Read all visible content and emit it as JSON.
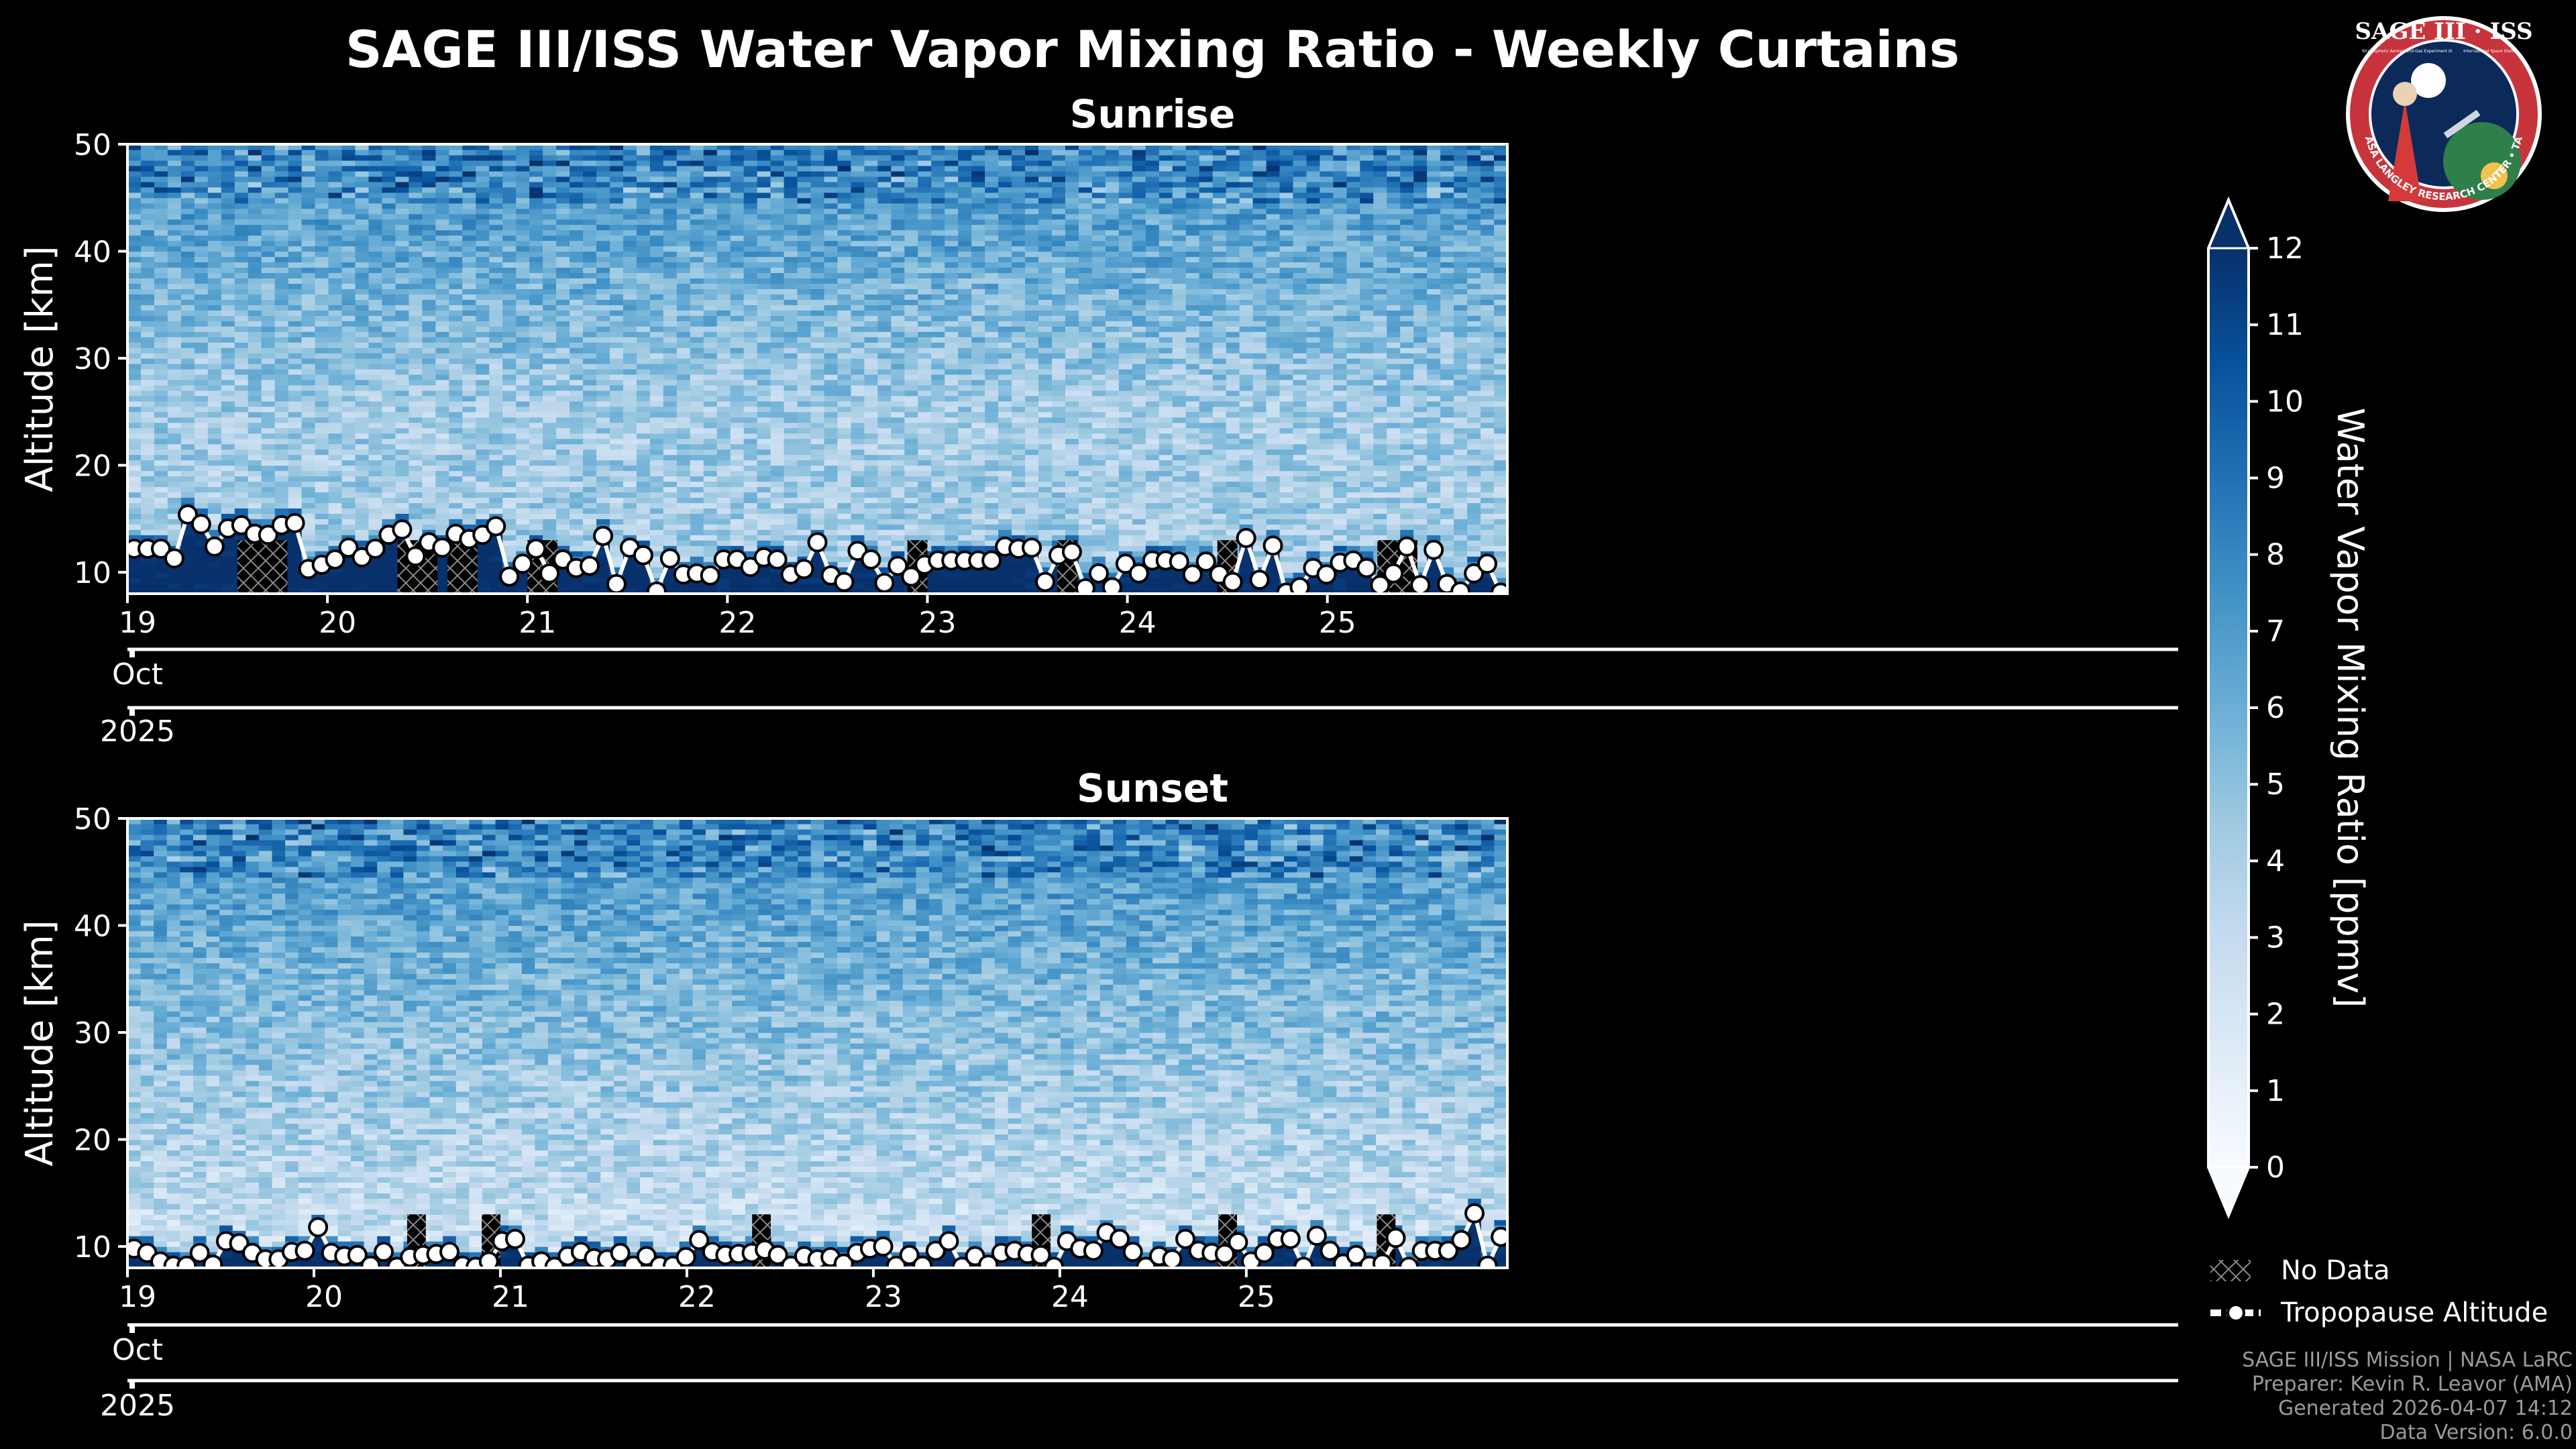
{
  "title": "SAGE III/ISS Water Vapor Mixing Ratio - Weekly Curtains",
  "logo": {
    "name": "SAGE III · ISS",
    "subtitle_left": "Stratospheric Aerosol and Gas Experiment III",
    "subtitle_right": "International Space Station",
    "ring_text": "BALL • NASA LANGLEY RESEARCH CENTER • TAS-I • ESA"
  },
  "chart_data": [
    {
      "type": "heatmap",
      "title": "Sunrise",
      "ylabel": "Altitude [km]",
      "xlabel": "",
      "ylim": [
        8,
        50
      ],
      "yticks": [
        10,
        20,
        30,
        40,
        50
      ],
      "xlim": [
        19,
        25.9
      ],
      "xticks": [
        {
          "value": 19,
          "label": "19"
        },
        {
          "value": 20,
          "label": "20"
        },
        {
          "value": 21,
          "label": "21"
        },
        {
          "value": 22,
          "label": "22"
        },
        {
          "value": 23,
          "label": "23"
        },
        {
          "value": 24,
          "label": "24"
        },
        {
          "value": 25,
          "label": "25"
        }
      ],
      "month_label": "Oct",
      "year_label": "2025",
      "colormap": "Blues",
      "grid": false,
      "tropopause_altitude_km": [
        12.2,
        12.2,
        12.2,
        11.3,
        15.4,
        14.5,
        12.4,
        14.1,
        14.4,
        13.6,
        13.5,
        14.4,
        14.6,
        10.3,
        10.7,
        11.2,
        12.3,
        11.4,
        12.2,
        13.5,
        14.0,
        11.5,
        12.8,
        12.3,
        13.6,
        13.1,
        13.5,
        14.3,
        9.6,
        10.8,
        12.2,
        9.9,
        11.2,
        10.4,
        10.6,
        13.4,
        8.9,
        12.3,
        11.6,
        8.2,
        11.3,
        9.8,
        9.9,
        9.7,
        11.2,
        11.2,
        10.5,
        11.4,
        11.2,
        9.8,
        10.3,
        12.8,
        9.7,
        9.1,
        12.0,
        11.2,
        9.0,
        10.6,
        9.6,
        10.7,
        11.1,
        11.1,
        11.1,
        11.1,
        11.1,
        12.4,
        12.2,
        12.3,
        9.1,
        11.6,
        11.9,
        8.5,
        9.9,
        8.6,
        10.8,
        9.9,
        11.1,
        11.1,
        11.0,
        9.8,
        11.0,
        9.8,
        9.1,
        13.2,
        9.3,
        12.5,
        8.1,
        8.6,
        10.4,
        9.8,
        10.9,
        11.1,
        10.4,
        8.8,
        9.9,
        12.4,
        8.8,
        12.1,
        8.9,
        8.2,
        9.9,
        10.8,
        8.1
      ],
      "missing_ranges": [
        [
          19.55,
          19.8
        ],
        [
          20.35,
          20.55
        ],
        [
          20.6,
          20.75
        ],
        [
          21.0,
          21.15
        ],
        [
          22.9,
          23.0
        ],
        [
          23.65,
          23.75
        ],
        [
          24.45,
          24.55
        ],
        [
          25.25,
          25.45
        ]
      ]
    },
    {
      "type": "heatmap",
      "title": "Sunset",
      "ylabel": "Altitude [km]",
      "xlabel": "",
      "ylim": [
        8,
        50
      ],
      "yticks": [
        10,
        20,
        30,
        40,
        50
      ],
      "xlim": [
        19,
        26.4
      ],
      "xticks": [
        {
          "value": 19,
          "label": "19"
        },
        {
          "value": 20,
          "label": "20"
        },
        {
          "value": 21,
          "label": "21"
        },
        {
          "value": 22,
          "label": "22"
        },
        {
          "value": 23,
          "label": "23"
        },
        {
          "value": 24,
          "label": "24"
        },
        {
          "value": 25,
          "label": "25"
        }
      ],
      "month_label": "Oct",
      "year_label": "2025",
      "colormap": "Blues",
      "grid": false,
      "tropopause_altitude_km": [
        9.8,
        9.4,
        8.6,
        8.2,
        8.2,
        9.4,
        8.3,
        10.5,
        10.3,
        9.4,
        8.8,
        8.8,
        9.5,
        9.6,
        11.8,
        9.4,
        9.1,
        9.2,
        8.2,
        9.5,
        8.1,
        9.0,
        9.2,
        9.3,
        9.5,
        8.2,
        8.1,
        8.6,
        10.5,
        10.7,
        8.2,
        8.6,
        8.1,
        9.1,
        9.5,
        8.9,
        8.8,
        9.4,
        8.2,
        9.1,
        8.2,
        8.2,
        9.0,
        10.6,
        9.5,
        9.2,
        9.3,
        9.4,
        9.7,
        9.2,
        8.2,
        9.1,
        8.8,
        9.0,
        8.4,
        9.4,
        9.8,
        10.0,
        8.2,
        9.2,
        8.2,
        9.6,
        10.5,
        8.1,
        9.1,
        8.3,
        9.4,
        9.6,
        9.3,
        9.2,
        8.1,
        10.5,
        9.8,
        9.6,
        11.3,
        10.7,
        9.5,
        8.1,
        9.1,
        8.8,
        10.7,
        9.6,
        9.4,
        9.3,
        10.4,
        8.6,
        9.4,
        10.7,
        10.7,
        8.1,
        11.0,
        9.6,
        8.4,
        9.2,
        8.2,
        8.4,
        10.8,
        8.1,
        9.6,
        9.6,
        9.6,
        10.6,
        13.1,
        8.2,
        10.9
      ],
      "missing_ranges": [
        [
          20.5,
          20.6
        ],
        [
          20.9,
          21.0
        ],
        [
          22.35,
          22.45
        ],
        [
          23.85,
          23.95
        ],
        [
          24.85,
          24.95
        ],
        [
          25.7,
          25.8
        ]
      ]
    }
  ],
  "colorbar": {
    "label": "Water Vapor Mixing Ratio [ppmv]",
    "min": 0,
    "max": 12,
    "ticks": [
      "0",
      "1",
      "2",
      "3",
      "4",
      "5",
      "6",
      "7",
      "8",
      "9",
      "10",
      "11",
      "12"
    ],
    "extend": "both"
  },
  "legend": {
    "placement": "bottom-right",
    "no_data": "No Data",
    "tropopause": "Tropopause Altitude"
  },
  "footer": {
    "line1": "SAGE III/ISS Mission | NASA LaRC",
    "line2": "Preparer: Kevin R. Leavor (AMA)",
    "line3": "Generated 2026-04-07 14:12",
    "line4": "Data Version: 6.0.0"
  },
  "colors": {
    "background": "#000000",
    "tropopause_line": "#ffffff",
    "marker_fill": "#ffffff",
    "marker_edge": "#000000",
    "logo_ring": "#c8343c",
    "logo_inner": "#0b2a5a"
  }
}
